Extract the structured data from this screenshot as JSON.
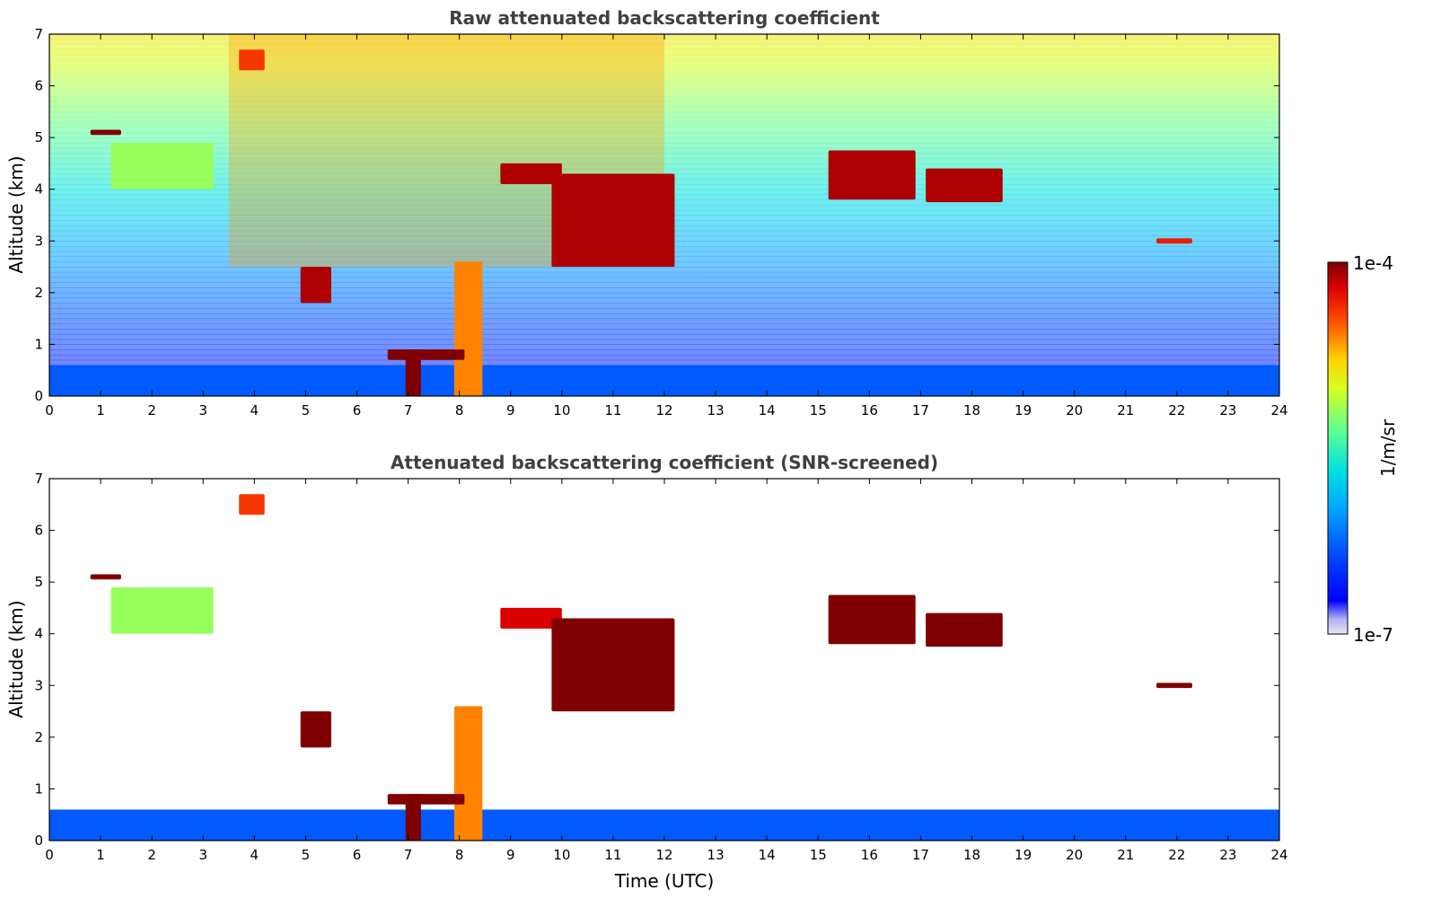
{
  "chart_data": [
    {
      "type": "heatmap",
      "title": "Raw attenuated backscattering coefficient",
      "xlabel": "",
      "ylabel": "Altitude (km)",
      "xlim": [
        0,
        24
      ],
      "ylim": [
        0,
        7
      ],
      "x_ticks": [
        "0",
        "1",
        "2",
        "3",
        "4",
        "5",
        "6",
        "7",
        "8",
        "9",
        "10",
        "11",
        "12",
        "13",
        "14",
        "15",
        "16",
        "17",
        "18",
        "19",
        "20",
        "21",
        "22",
        "23",
        "24"
      ],
      "y_ticks": [
        "0",
        "1",
        "2",
        "3",
        "4",
        "5",
        "6",
        "7"
      ],
      "colorbar": {
        "label": "1/m/sr",
        "scale": "log",
        "min_label": "1e-7",
        "max_label": "1e-4",
        "min": 1e-07,
        "max": 0.0001
      },
      "features": [
        {
          "desc": "boundary layer",
          "x": [
            0,
            24
          ],
          "alt_km": [
            0,
            0.6
          ],
          "log_beta": -6.3
        },
        {
          "desc": "rain shaft",
          "x": [
            6.95,
            7.25
          ],
          "alt_km": [
            0,
            0.9
          ],
          "log_beta": -4.0
        },
        {
          "desc": "rain shaft",
          "x": [
            7.9,
            8.45
          ],
          "alt_km": [
            0,
            2.6
          ],
          "log_beta": -4.6
        },
        {
          "desc": "low cloud",
          "x": [
            6.6,
            8.1
          ],
          "alt_km": [
            0.7,
            0.9
          ],
          "log_beta": -4.0
        },
        {
          "desc": "cloud",
          "x": [
            0.8,
            1.4
          ],
          "alt_km": [
            5.05,
            5.15
          ],
          "log_beta": -4.0
        },
        {
          "desc": "cloud",
          "x": [
            1.2,
            3.2
          ],
          "alt_km": [
            4.0,
            4.9
          ],
          "log_beta": -5.2
        },
        {
          "desc": "cloud",
          "x": [
            8.8,
            10.0
          ],
          "alt_km": [
            4.1,
            4.5
          ],
          "log_beta": -4.1
        },
        {
          "desc": "cloud",
          "x": [
            9.8,
            12.2
          ],
          "alt_km": [
            2.5,
            4.3
          ],
          "log_beta": -4.1
        },
        {
          "desc": "cloud",
          "x": [
            15.2,
            16.9
          ],
          "alt_km": [
            3.8,
            4.75
          ],
          "log_beta": -4.1
        },
        {
          "desc": "cloud",
          "x": [
            17.1,
            18.6
          ],
          "alt_km": [
            3.75,
            4.4
          ],
          "log_beta": -4.1
        },
        {
          "desc": "cloud",
          "x": [
            21.6,
            22.3
          ],
          "alt_km": [
            2.95,
            3.05
          ],
          "log_beta": -4.3
        },
        {
          "desc": "cloud",
          "x": [
            4.9,
            5.5
          ],
          "alt_km": [
            1.8,
            2.5
          ],
          "log_beta": -4.1
        },
        {
          "desc": "cloud",
          "x": [
            3.7,
            4.2
          ],
          "alt_km": [
            6.3,
            6.7
          ],
          "log_beta": -4.4
        }
      ]
    },
    {
      "type": "heatmap",
      "title": "Attenuated backscattering coefficient (SNR-screened)",
      "xlabel": "Time (UTC)",
      "ylabel": "Altitude (km)",
      "xlim": [
        0,
        24
      ],
      "ylim": [
        0,
        7
      ],
      "x_ticks": [
        "0",
        "1",
        "2",
        "3",
        "4",
        "5",
        "6",
        "7",
        "8",
        "9",
        "10",
        "11",
        "12",
        "13",
        "14",
        "15",
        "16",
        "17",
        "18",
        "19",
        "20",
        "21",
        "22",
        "23",
        "24"
      ],
      "y_ticks": [
        "0",
        "1",
        "2",
        "3",
        "4",
        "5",
        "6",
        "7"
      ],
      "colorbar": {
        "label": "1/m/sr",
        "scale": "log",
        "min_label": "1e-7",
        "max_label": "1e-4",
        "min": 1e-07,
        "max": 0.0001
      },
      "features": [
        {
          "desc": "boundary layer",
          "x": [
            0,
            24
          ],
          "alt_km": [
            0,
            0.6
          ],
          "log_beta": -6.3
        },
        {
          "desc": "rain shaft",
          "x": [
            6.95,
            7.25
          ],
          "alt_km": [
            0,
            0.9
          ],
          "log_beta": -4.0
        },
        {
          "desc": "rain shaft",
          "x": [
            7.9,
            8.45
          ],
          "alt_km": [
            0,
            2.6
          ],
          "log_beta": -4.6
        },
        {
          "desc": "low cloud",
          "x": [
            6.6,
            8.1
          ],
          "alt_km": [
            0.7,
            0.9
          ],
          "log_beta": -4.0
        },
        {
          "desc": "cloud",
          "x": [
            0.8,
            1.4
          ],
          "alt_km": [
            5.05,
            5.15
          ],
          "log_beta": -4.0
        },
        {
          "desc": "cloud",
          "x": [
            1.2,
            3.2
          ],
          "alt_km": [
            4.0,
            4.9
          ],
          "log_beta": -5.2
        },
        {
          "desc": "cloud",
          "x": [
            8.8,
            10.0
          ],
          "alt_km": [
            4.1,
            4.5
          ],
          "log_beta": -4.2
        },
        {
          "desc": "cloud",
          "x": [
            9.8,
            12.2
          ],
          "alt_km": [
            2.5,
            4.3
          ],
          "log_beta": -4.0
        },
        {
          "desc": "cloud",
          "x": [
            15.2,
            16.9
          ],
          "alt_km": [
            3.8,
            4.75
          ],
          "log_beta": -4.0
        },
        {
          "desc": "cloud",
          "x": [
            17.1,
            18.6
          ],
          "alt_km": [
            3.75,
            4.4
          ],
          "log_beta": -4.0
        },
        {
          "desc": "cloud",
          "x": [
            21.6,
            22.3
          ],
          "alt_km": [
            2.95,
            3.05
          ],
          "log_beta": -4.0
        },
        {
          "desc": "cloud",
          "x": [
            4.9,
            5.5
          ],
          "alt_km": [
            1.8,
            2.5
          ],
          "log_beta": -4.0
        },
        {
          "desc": "cloud",
          "x": [
            3.7,
            4.2
          ],
          "alt_km": [
            6.3,
            6.7
          ],
          "log_beta": -4.4
        }
      ]
    }
  ]
}
